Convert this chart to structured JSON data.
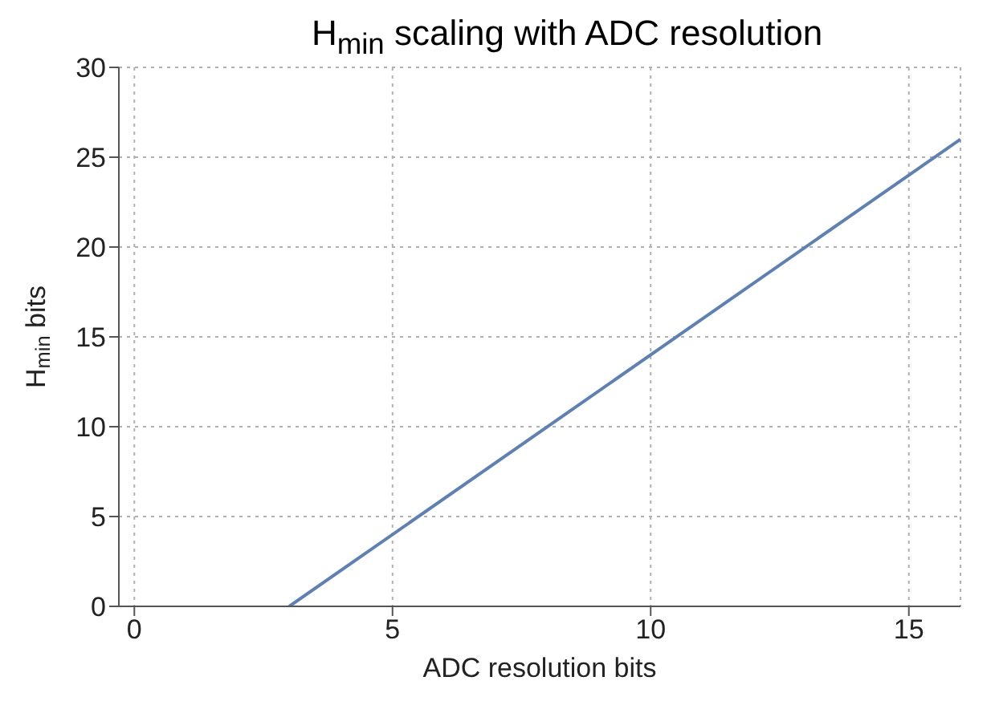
{
  "chart_data": {
    "type": "line",
    "title": "H$_{min}$ scaling with ADC resolution",
    "xlabel": "ADC resolution bits",
    "ylabel": "H$_{min}$ bits",
    "x": [
      3,
      16
    ],
    "series": [
      {
        "color": "#5e81b5",
        "values": [
          0,
          26
        ]
      }
    ],
    "xlim": [
      -0.3,
      16
    ],
    "xticks": [
      0,
      5,
      10,
      15
    ],
    "ylim": [
      0,
      30
    ],
    "yticks": [
      0,
      5,
      10,
      15,
      20,
      25,
      30
    ],
    "grid": true,
    "legend": false,
    "marker": "none",
    "line_style": "solid"
  }
}
